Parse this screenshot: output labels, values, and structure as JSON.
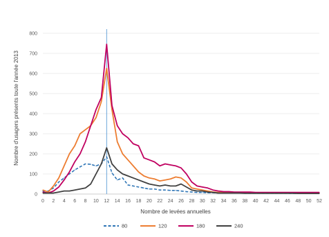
{
  "chart_data": {
    "type": "line",
    "xlabel": "Nombre de levées annuelles",
    "ylabel": "Nombre d'usagers présents toute l'année 2013",
    "ylim": [
      0,
      800
    ],
    "yticks": [
      "0",
      "100",
      "200",
      "300",
      "400",
      "500",
      "600",
      "700",
      "800"
    ],
    "xlim": [
      0,
      52
    ],
    "xticks": [
      "0",
      "2",
      "4",
      "6",
      "8",
      "10",
      "12",
      "14",
      "16",
      "18",
      "20",
      "22",
      "24",
      "26",
      "28",
      "30",
      "32",
      "34",
      "36",
      "38",
      "40",
      "42",
      "44",
      "46",
      "48",
      "50",
      "52"
    ],
    "reference_line_x": 12,
    "grid": "horizontal",
    "legend_position": "bottom",
    "x": [
      0,
      1,
      2,
      3,
      4,
      5,
      6,
      7,
      8,
      9,
      10,
      11,
      12,
      13,
      14,
      15,
      16,
      17,
      18,
      19,
      20,
      21,
      22,
      23,
      24,
      25,
      26,
      27,
      28,
      29,
      30,
      31,
      32,
      33,
      34,
      35,
      36,
      37,
      38,
      39,
      40,
      41,
      42,
      43,
      44,
      45,
      46,
      47,
      48,
      49,
      50,
      51,
      52
    ],
    "series": [
      {
        "name": "80",
        "color": "#2e75b6",
        "dash": "dashed",
        "values": [
          15,
          15,
          30,
          60,
          80,
          100,
          120,
          135,
          150,
          148,
          140,
          150,
          185,
          105,
          70,
          80,
          45,
          40,
          35,
          30,
          25,
          25,
          20,
          20,
          18,
          18,
          15,
          12,
          10,
          8,
          8,
          6,
          6,
          5,
          5,
          5,
          5,
          5,
          4,
          4,
          4,
          4,
          4,
          4,
          4,
          4,
          4,
          3,
          3,
          3,
          3,
          3,
          3
        ]
      },
      {
        "name": "120",
        "color": "#ed7d31",
        "dash": "solid",
        "values": [
          20,
          10,
          40,
          80,
          140,
          200,
          240,
          300,
          320,
          340,
          380,
          460,
          625,
          420,
          260,
          200,
          170,
          140,
          110,
          90,
          80,
          75,
          65,
          70,
          75,
          85,
          80,
          60,
          30,
          25,
          20,
          15,
          10,
          8,
          8,
          8,
          8,
          8,
          6,
          6,
          6,
          6,
          6,
          6,
          6,
          6,
          6,
          5,
          5,
          5,
          5,
          5,
          5
        ]
      },
      {
        "name": "180",
        "color": "#c00060",
        "dash": "solid",
        "values": [
          10,
          5,
          15,
          35,
          70,
          110,
          160,
          200,
          260,
          340,
          420,
          480,
          745,
          440,
          340,
          300,
          280,
          250,
          240,
          180,
          170,
          160,
          140,
          150,
          145,
          140,
          130,
          100,
          60,
          40,
          35,
          30,
          20,
          15,
          12,
          12,
          10,
          10,
          10,
          10,
          8,
          8,
          8,
          8,
          8,
          8,
          8,
          8,
          8,
          8,
          8,
          8,
          8
        ]
      },
      {
        "name": "240",
        "color": "#404040",
        "dash": "solid",
        "values": [
          5,
          5,
          5,
          10,
          15,
          15,
          20,
          25,
          30,
          50,
          100,
          150,
          230,
          150,
          120,
          100,
          90,
          80,
          70,
          60,
          50,
          45,
          40,
          45,
          40,
          40,
          50,
          35,
          20,
          15,
          15,
          10,
          8,
          5,
          5,
          5,
          5,
          5,
          4,
          4,
          4,
          4,
          4,
          4,
          4,
          4,
          4,
          4,
          3,
          3,
          3,
          3,
          3
        ]
      }
    ]
  }
}
